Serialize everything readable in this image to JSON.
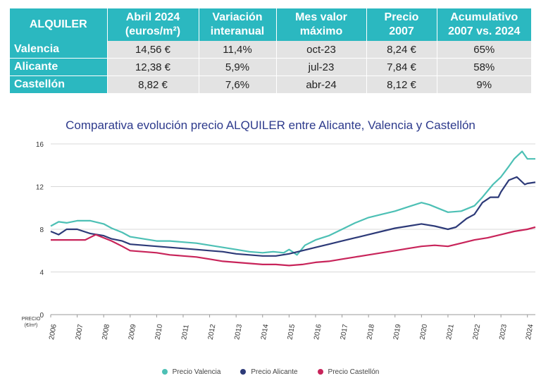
{
  "table": {
    "headers": [
      "ALQUILER",
      "Abril 2024\n(euros/m²)",
      "Variación\ninteranual",
      "Mes valor\nmáximo",
      "Precio\n2007",
      "Acumulativo\n2007 vs. 2024"
    ],
    "rows": [
      {
        "city": "Valencia",
        "price": "14,56 €",
        "variation": "11,4%",
        "max_month": "oct-23",
        "price_2007": "8,24 €",
        "cumulative": "65%"
      },
      {
        "city": "Alicante",
        "price": "12,38 €",
        "variation": "5,9%",
        "max_month": "jul-23",
        "price_2007": "7,84 €",
        "cumulative": "58%"
      },
      {
        "city": "Castellón",
        "price": "8,82 €",
        "variation": "7,6%",
        "max_month": "abr-24",
        "price_2007": "8,12 €",
        "cumulative": "9%"
      }
    ]
  },
  "colors": {
    "header_bg": "#2bb8c0",
    "cell_bg": "#e3e3e3",
    "title": "#2d3a8c"
  },
  "chart_data": {
    "type": "line",
    "title": "Comparativa evolución precio ALQUILER entre Alicante, Valencia y Castellón",
    "ylabel": "PRECIO\n(€/m²)",
    "xlabel": "",
    "ylim": [
      0,
      16
    ],
    "yticks": [
      0,
      4,
      8,
      12,
      16
    ],
    "xlim": [
      2006,
      2024.3
    ],
    "x_tick_labels": [
      "2006",
      "2007",
      "2008",
      "2009",
      "2010",
      "2011",
      "2012",
      "2013",
      "2014",
      "2015",
      "2016",
      "2017",
      "2018",
      "2019",
      "2020",
      "2021",
      "2022",
      "2023",
      "2024"
    ],
    "legend_position": "bottom",
    "series": [
      {
        "name": "Precio Valencia",
        "color": "#4dc0b5",
        "x": [
          2006,
          2006.3,
          2006.6,
          2007,
          2007.5,
          2008,
          2008.3,
          2008.7,
          2009,
          2009.5,
          2010,
          2010.5,
          2011,
          2011.5,
          2012,
          2012.5,
          2013,
          2013.5,
          2014,
          2014.4,
          2014.8,
          2015,
          2015.3,
          2015.6,
          2016,
          2016.5,
          2017,
          2017.5,
          2018,
          2018.5,
          2019,
          2019.5,
          2020,
          2020.3,
          2020.7,
          2021,
          2021.5,
          2022,
          2022.3,
          2022.7,
          2023,
          2023.3,
          2023.5,
          2023.8,
          2024,
          2024.3
        ],
        "y": [
          8.3,
          8.7,
          8.6,
          8.8,
          8.8,
          8.5,
          8.1,
          7.7,
          7.3,
          7.1,
          6.9,
          6.9,
          6.8,
          6.7,
          6.5,
          6.3,
          6.1,
          5.9,
          5.8,
          5.9,
          5.8,
          6.1,
          5.6,
          6.5,
          7.0,
          7.4,
          8.0,
          8.6,
          9.1,
          9.4,
          9.7,
          10.1,
          10.5,
          10.3,
          9.9,
          9.6,
          9.7,
          10.2,
          11.0,
          12.2,
          12.9,
          13.9,
          14.6,
          15.3,
          14.6,
          14.6
        ]
      },
      {
        "name": "Precio Alicante",
        "color": "#2d3a78",
        "x": [
          2006,
          2006.3,
          2006.6,
          2007,
          2007.5,
          2008,
          2008.3,
          2008.7,
          2009,
          2009.5,
          2010,
          2010.5,
          2011,
          2011.5,
          2012,
          2012.5,
          2013,
          2013.5,
          2014,
          2014.5,
          2015,
          2015.5,
          2016,
          2016.5,
          2017,
          2017.5,
          2018,
          2018.5,
          2019,
          2019.5,
          2020,
          2020.5,
          2021,
          2021.3,
          2021.7,
          2022,
          2022.3,
          2022.6,
          2022.9,
          2023,
          2023.3,
          2023.6,
          2023.9,
          2024,
          2024.3
        ],
        "y": [
          7.8,
          7.5,
          8.0,
          8.0,
          7.6,
          7.4,
          7.1,
          6.9,
          6.6,
          6.5,
          6.4,
          6.3,
          6.2,
          6.1,
          6.0,
          5.9,
          5.7,
          5.6,
          5.5,
          5.5,
          5.7,
          6.0,
          6.3,
          6.6,
          6.9,
          7.2,
          7.5,
          7.8,
          8.1,
          8.3,
          8.5,
          8.3,
          8.0,
          8.2,
          9.0,
          9.4,
          10.5,
          11.0,
          11.0,
          11.5,
          12.6,
          12.9,
          12.2,
          12.3,
          12.4
        ]
      },
      {
        "name": "Precio Castellón",
        "color": "#c8245a",
        "x": [
          2006,
          2006.5,
          2007,
          2007.3,
          2007.7,
          2008,
          2008.3,
          2008.7,
          2009,
          2009.5,
          2010,
          2010.5,
          2011,
          2011.5,
          2012,
          2012.5,
          2013,
          2013.5,
          2014,
          2014.5,
          2015,
          2015.5,
          2016,
          2016.5,
          2017,
          2017.5,
          2018,
          2018.5,
          2019,
          2019.5,
          2020,
          2020.5,
          2021,
          2021.5,
          2022,
          2022.5,
          2023,
          2023.5,
          2024,
          2024.3
        ],
        "y": [
          7.0,
          7.0,
          7.0,
          7.0,
          7.5,
          7.2,
          6.9,
          6.4,
          6.0,
          5.9,
          5.8,
          5.6,
          5.5,
          5.4,
          5.2,
          5.0,
          4.9,
          4.8,
          4.7,
          4.7,
          4.6,
          4.7,
          4.9,
          5.0,
          5.2,
          5.4,
          5.6,
          5.8,
          6.0,
          6.2,
          6.4,
          6.5,
          6.4,
          6.7,
          7.0,
          7.2,
          7.5,
          7.8,
          8.0,
          8.2
        ]
      }
    ]
  }
}
